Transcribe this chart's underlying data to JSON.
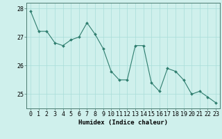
{
  "x": [
    0,
    1,
    2,
    3,
    4,
    5,
    6,
    7,
    8,
    9,
    10,
    11,
    12,
    13,
    14,
    15,
    16,
    17,
    18,
    19,
    20,
    21,
    22,
    23
  ],
  "y": [
    27.9,
    27.2,
    27.2,
    26.8,
    26.7,
    26.9,
    27.0,
    27.5,
    27.1,
    26.6,
    25.8,
    25.5,
    25.5,
    26.7,
    26.7,
    25.4,
    25.1,
    25.9,
    25.8,
    25.5,
    25.0,
    25.1,
    24.9,
    24.7
  ],
  "line_color": "#2e7d6e",
  "marker_color": "#2e7d6e",
  "bg_color": "#cff0ec",
  "grid_color": "#a8ddd8",
  "xlabel": "Humidex (Indice chaleur)",
  "ylim": [
    24.5,
    28.2
  ],
  "xlim": [
    -0.5,
    23.5
  ],
  "yticks": [
    25,
    26,
    27,
    28
  ],
  "xticks": [
    0,
    1,
    2,
    3,
    4,
    5,
    6,
    7,
    8,
    9,
    10,
    11,
    12,
    13,
    14,
    15,
    16,
    17,
    18,
    19,
    20,
    21,
    22,
    23
  ],
  "label_fontsize": 6.5,
  "tick_fontsize": 6.0
}
